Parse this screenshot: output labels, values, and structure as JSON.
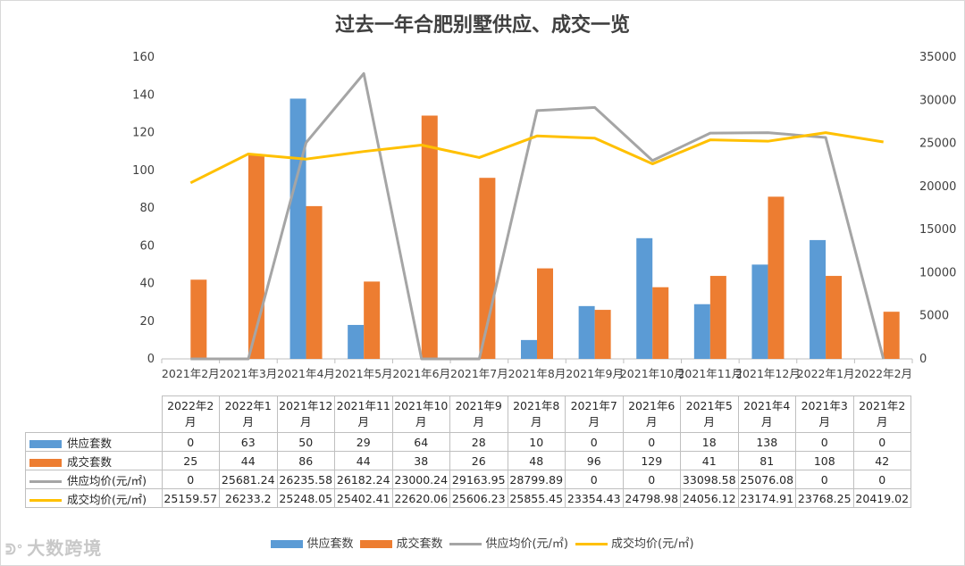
{
  "title": "过去一年合肥别墅供应、成交一览",
  "watermark": "大数跨境",
  "chart_data": {
    "type": "bar",
    "title": "过去一年合肥别墅供应、成交一览",
    "categories": [
      "2021年2月",
      "2021年3月",
      "2021年4月",
      "2021年5月",
      "2021年6月",
      "2021年7月",
      "2021年8月",
      "2021年9月",
      "2021年10月",
      "2021年11月",
      "2021年12月",
      "2022年1月",
      "2022年2月"
    ],
    "series": [
      {
        "name": "供应套数",
        "type": "bar",
        "axis": "left",
        "color": "#5b9bd5",
        "values": [
          0,
          0,
          138,
          18,
          0,
          0,
          10,
          28,
          64,
          29,
          50,
          63,
          0
        ]
      },
      {
        "name": "成交套数",
        "type": "bar",
        "axis": "left",
        "color": "#ed7d31",
        "values": [
          42,
          108,
          81,
          41,
          129,
          96,
          48,
          26,
          38,
          44,
          86,
          44,
          25
        ]
      },
      {
        "name": "供应均价(元/㎡)",
        "type": "line",
        "axis": "right",
        "color": "#a5a5a5",
        "values": [
          0,
          0,
          25076.08,
          33098.58,
          0,
          0,
          28799.89,
          29163.95,
          23000.24,
          26182.24,
          26235.58,
          25681.24,
          0
        ]
      },
      {
        "name": "成交均价(元/㎡)",
        "type": "line",
        "axis": "right",
        "color": "#ffc000",
        "values": [
          20419.02,
          23768.25,
          23174.91,
          24056.12,
          24798.98,
          23354.43,
          25855.45,
          25606.23,
          22620.06,
          25402.41,
          25248.05,
          26233.2,
          25159.57
        ]
      }
    ],
    "ylim_left": [
      0,
      160
    ],
    "yticks_left": [
      "0",
      "20",
      "40",
      "60",
      "80",
      "100",
      "120",
      "140",
      "160"
    ],
    "ylim_right": [
      0,
      35000
    ],
    "yticks_right": [
      "0",
      "5000",
      "10000",
      "15000",
      "20000",
      "25000",
      "30000",
      "35000"
    ],
    "grid": false,
    "legend": "bottom",
    "table": {
      "periods": [
        "2022年2月",
        "2022年1月",
        "2021年12月",
        "2021年11月",
        "2021年10月",
        "2021年9月",
        "2021年8月",
        "2021年7月",
        "2021年6月",
        "2021年5月",
        "2021年4月",
        "2021年3月",
        "2021年2月"
      ],
      "rows": [
        {
          "label": "供应套数",
          "color": "#5b9bd5",
          "kind": "bar",
          "values": [
            "0",
            "63",
            "50",
            "29",
            "64",
            "28",
            "10",
            "0",
            "0",
            "18",
            "138",
            "0",
            "0"
          ]
        },
        {
          "label": "成交套数",
          "color": "#ed7d31",
          "kind": "bar",
          "values": [
            "25",
            "44",
            "86",
            "44",
            "38",
            "26",
            "48",
            "96",
            "129",
            "41",
            "81",
            "108",
            "42"
          ]
        },
        {
          "label": "供应均价(元/㎡)",
          "color": "#a5a5a5",
          "kind": "line",
          "values": [
            "0",
            "25681.24",
            "26235.58",
            "26182.24",
            "23000.24",
            "29163.95",
            "28799.89",
            "0",
            "0",
            "33098.58",
            "25076.08",
            "0",
            "0"
          ]
        },
        {
          "label": "成交均价(元/㎡)",
          "color": "#ffc000",
          "kind": "line",
          "values": [
            "25159.57",
            "26233.2",
            "25248.05",
            "25402.41",
            "22620.06",
            "25606.23",
            "25855.45",
            "23354.43",
            "24798.98",
            "24056.12",
            "23174.91",
            "23768.25",
            "20419.02"
          ]
        }
      ]
    }
  }
}
